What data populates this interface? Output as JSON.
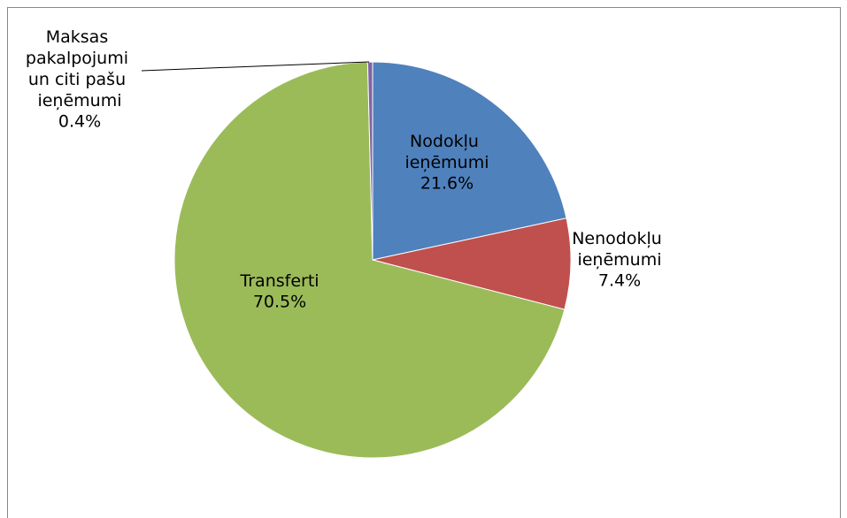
{
  "chart_data": {
    "type": "pie",
    "categories": [
      "Nodokļu ieņēmumi",
      "Nenodokļu ieņēmumi",
      "Transferti",
      "Maksas pakalpojumi un citi pašu ieņēmumi"
    ],
    "values": [
      21.6,
      7.4,
      70.5,
      0.4
    ],
    "value_labels": [
      "21.6%",
      "7.4%",
      "70.5%",
      "0.4%"
    ],
    "colors": [
      "#4f81bd",
      "#c0504d",
      "#9bbb59",
      "#8064a2"
    ]
  }
}
